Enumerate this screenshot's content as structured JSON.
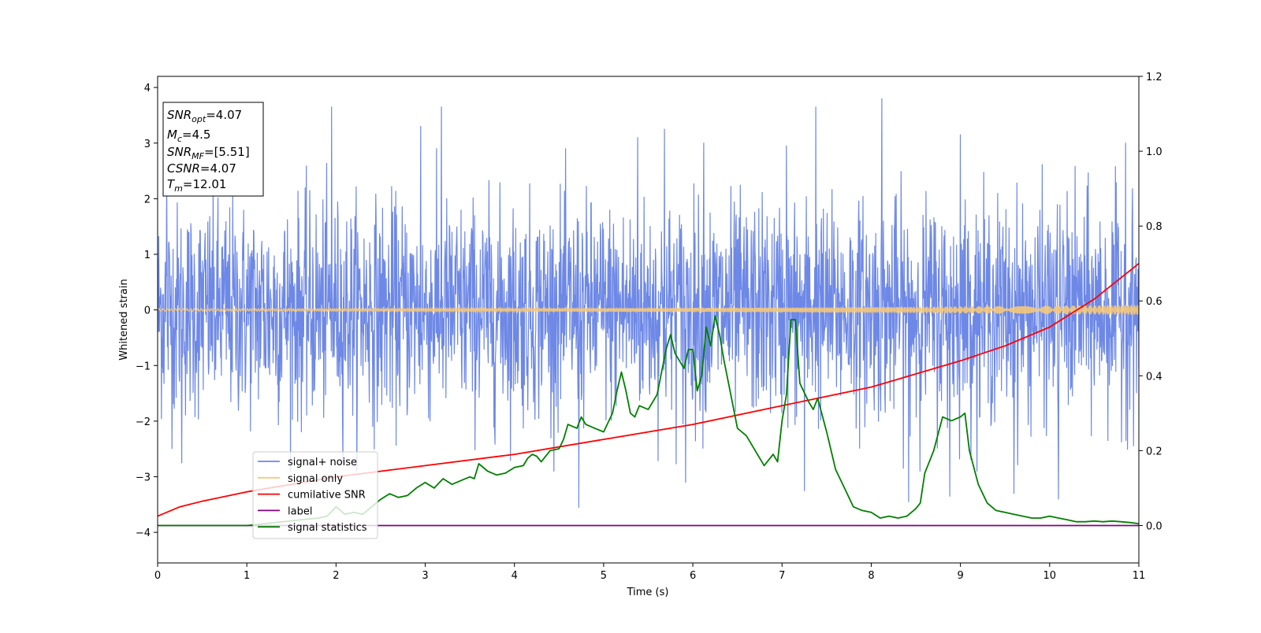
{
  "chart_data": {
    "type": "line",
    "xlabel": "Time (s)",
    "ylabel": "Whitened strain",
    "xlim": [
      0,
      11
    ],
    "ylim": [
      -4.55,
      4.2
    ],
    "y2lim": [
      -0.1,
      1.2
    ],
    "x_ticks": [
      "0",
      "1",
      "2",
      "3",
      "4",
      "5",
      "6",
      "7",
      "8",
      "9",
      "10",
      "11"
    ],
    "x_tick_values": [
      0,
      1,
      2,
      3,
      4,
      5,
      6,
      7,
      8,
      9,
      10,
      11
    ],
    "y_ticks": [
      "−4",
      "−3",
      "−2",
      "−1",
      "0",
      "1",
      "2",
      "3",
      "4"
    ],
    "y_tick_values": [
      -4,
      -3,
      -2,
      -1,
      0,
      1,
      2,
      3,
      4
    ],
    "y2_ticks": [
      "0.0",
      "0.2",
      "0.4",
      "0.6",
      "0.8",
      "1.0",
      "1.2"
    ],
    "y2_tick_values": [
      0.0,
      0.2,
      0.4,
      0.6,
      0.8,
      1.0,
      1.2
    ],
    "legend": {
      "placement": "lower-left",
      "entries": [
        {
          "name": "signal+ noise",
          "color": "#6d88e6"
        },
        {
          "name": "signal only",
          "color": "#f5c97a"
        },
        {
          "name": "cumilative SNR",
          "color": "#ff0000"
        },
        {
          "name": "label",
          "color": "#800080"
        },
        {
          "name": "signal statistics",
          "color": "#008000"
        }
      ]
    },
    "annotation": {
      "lines": [
        {
          "base": "SNR",
          "sub": "opt",
          "value": "=4.07"
        },
        {
          "base": "M",
          "sub": "c",
          "value": "=4.5"
        },
        {
          "base": "SNR",
          "sub": "MF",
          "value": "=[5.51]"
        },
        {
          "base": "CSNR",
          "sub": "",
          "value": "=4.07"
        },
        {
          "base": "T",
          "sub": "m",
          "value": "=12.01"
        }
      ]
    },
    "series": [
      {
        "name": "signal+ noise",
        "axis": "left",
        "color": "#6d88e6",
        "kind": "noise",
        "y_range_typical": [
          -2.2,
          2.2
        ],
        "spikes": [
          [
            0.1,
            2.4
          ],
          [
            0.27,
            -2.75
          ],
          [
            1.95,
            3.65
          ],
          [
            2.95,
            3.3
          ],
          [
            3.18,
            3.65
          ],
          [
            4.72,
            -3.55
          ],
          [
            5.38,
            3.1
          ],
          [
            5.68,
            3.25
          ],
          [
            5.92,
            -3.1
          ],
          [
            6.12,
            3.0
          ],
          [
            7.05,
            2.95
          ],
          [
            7.25,
            -3.25
          ],
          [
            7.38,
            3.65
          ],
          [
            8.12,
            3.8
          ],
          [
            8.42,
            -3.45
          ],
          [
            8.88,
            -3.35
          ],
          [
            9.0,
            3.15
          ],
          [
            9.6,
            -3.3
          ],
          [
            10.1,
            -3.4
          ],
          [
            10.85,
            3.0
          ]
        ]
      },
      {
        "name": "signal only",
        "axis": "left",
        "color": "#f5c97a",
        "kind": "chirp",
        "amplitude_start": 0.02,
        "amplitude_end": 0.09
      },
      {
        "name": "cumilative SNR",
        "axis": "right",
        "color": "#ff0000",
        "x": [
          0,
          0.25,
          0.5,
          1,
          1.5,
          2,
          3,
          4,
          5,
          6,
          7,
          8,
          9,
          9.5,
          10,
          10.5,
          11
        ],
        "values": [
          0.025,
          0.05,
          0.065,
          0.09,
          0.11,
          0.13,
          0.16,
          0.19,
          0.23,
          0.27,
          0.32,
          0.37,
          0.44,
          0.48,
          0.53,
          0.605,
          0.7
        ]
      },
      {
        "name": "label",
        "axis": "right",
        "color": "#800080",
        "x": [
          0,
          11
        ],
        "values": [
          0.0,
          0.0
        ]
      },
      {
        "name": "signal statistics",
        "axis": "right",
        "color": "#008000",
        "x": [
          0,
          0.5,
          1,
          1.2,
          1.4,
          1.6,
          1.8,
          1.9,
          2.0,
          2.1,
          2.2,
          2.3,
          2.4,
          2.5,
          2.6,
          2.7,
          2.8,
          2.9,
          3.0,
          3.1,
          3.2,
          3.3,
          3.4,
          3.5,
          3.55,
          3.6,
          3.7,
          3.8,
          3.9,
          4.0,
          4.1,
          4.15,
          4.2,
          4.25,
          4.3,
          4.4,
          4.5,
          4.55,
          4.6,
          4.7,
          4.75,
          4.8,
          4.9,
          5.0,
          5.1,
          5.15,
          5.2,
          5.25,
          5.3,
          5.35,
          5.4,
          5.5,
          5.6,
          5.7,
          5.75,
          5.8,
          5.9,
          5.95,
          6.0,
          6.05,
          6.1,
          6.15,
          6.2,
          6.25,
          6.3,
          6.35,
          6.4,
          6.5,
          6.6,
          6.7,
          6.8,
          6.9,
          6.95,
          7.0,
          7.05,
          7.1,
          7.15,
          7.2,
          7.3,
          7.35,
          7.4,
          7.5,
          7.6,
          7.7,
          7.8,
          7.9,
          8.0,
          8.1,
          8.2,
          8.3,
          8.4,
          8.5,
          8.55,
          8.6,
          8.7,
          8.8,
          8.9,
          9.0,
          9.05,
          9.1,
          9.2,
          9.3,
          9.4,
          9.5,
          9.6,
          9.7,
          9.8,
          9.9,
          10.0,
          10.1,
          10.2,
          10.3,
          10.4,
          10.5,
          10.6,
          10.7,
          10.8,
          10.9,
          11.0
        ],
        "values": [
          0.0,
          0.0,
          0.0,
          0.005,
          0.01,
          0.015,
          0.02,
          0.025,
          0.05,
          0.03,
          0.035,
          0.03,
          0.05,
          0.07,
          0.085,
          0.075,
          0.08,
          0.1,
          0.115,
          0.1,
          0.125,
          0.11,
          0.12,
          0.13,
          0.125,
          0.165,
          0.145,
          0.135,
          0.14,
          0.155,
          0.16,
          0.18,
          0.19,
          0.185,
          0.17,
          0.2,
          0.205,
          0.23,
          0.27,
          0.26,
          0.29,
          0.27,
          0.26,
          0.25,
          0.3,
          0.36,
          0.41,
          0.36,
          0.3,
          0.29,
          0.32,
          0.31,
          0.35,
          0.47,
          0.51,
          0.46,
          0.42,
          0.47,
          0.47,
          0.36,
          0.4,
          0.53,
          0.48,
          0.56,
          0.51,
          0.44,
          0.38,
          0.26,
          0.24,
          0.2,
          0.16,
          0.19,
          0.17,
          0.28,
          0.35,
          0.55,
          0.55,
          0.38,
          0.33,
          0.31,
          0.34,
          0.25,
          0.15,
          0.1,
          0.05,
          0.04,
          0.035,
          0.02,
          0.025,
          0.02,
          0.025,
          0.045,
          0.06,
          0.14,
          0.2,
          0.29,
          0.28,
          0.29,
          0.3,
          0.2,
          0.11,
          0.06,
          0.04,
          0.035,
          0.03,
          0.025,
          0.02,
          0.02,
          0.025,
          0.02,
          0.015,
          0.01,
          0.01,
          0.012,
          0.01,
          0.012,
          0.01,
          0.008,
          0.005
        ]
      }
    ]
  }
}
